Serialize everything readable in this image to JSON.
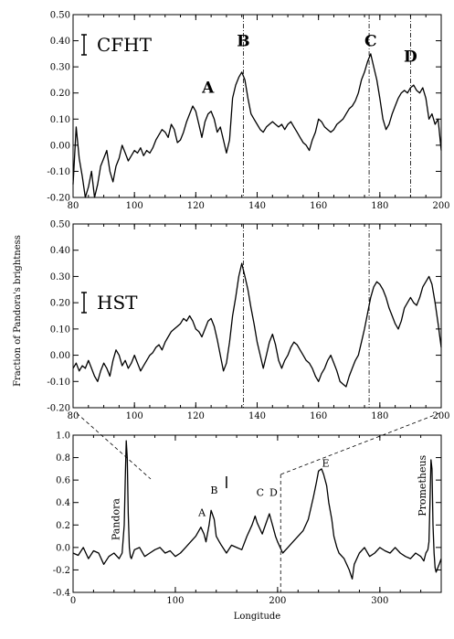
{
  "chart_data": [
    {
      "type": "line",
      "panel_label": "CFHT",
      "xlim": [
        80,
        200
      ],
      "ylim": [
        -0.2,
        0.5
      ],
      "xticks": [
        "80",
        "100",
        "120",
        "140",
        "160",
        "180",
        "200"
      ],
      "yticks": [
        "-0.20",
        "-0.10",
        "0.00",
        "0.10",
        "0.20",
        "0.30",
        "0.40",
        "0.50"
      ],
      "feature_labels": [
        {
          "text": "A",
          "x": 124,
          "y": 0.2
        },
        {
          "text": "B",
          "x": 135.5,
          "y": 0.38
        },
        {
          "text": "C",
          "x": 177,
          "y": 0.38
        },
        {
          "text": "D",
          "x": 190,
          "y": 0.32
        }
      ],
      "vlines": [
        135.5,
        176.5,
        190
      ],
      "series": [
        {
          "x": [
            80,
            81,
            82,
            83,
            84,
            85,
            86,
            87,
            88,
            89,
            90,
            91,
            92,
            93,
            94,
            95,
            96,
            97,
            98,
            99,
            100,
            101,
            102,
            103,
            104,
            105,
            106,
            107,
            108,
            109,
            110,
            111,
            112,
            113,
            114,
            115,
            116,
            117,
            118,
            119,
            120,
            121,
            122,
            123,
            124,
            125,
            126,
            127,
            128,
            129,
            130,
            131,
            132,
            133,
            134,
            135,
            136,
            137,
            138,
            139,
            140,
            141,
            142,
            143,
            144,
            145,
            146,
            147,
            148,
            149,
            150,
            151,
            152,
            153,
            154,
            155,
            156,
            157,
            158,
            159,
            160,
            161,
            162,
            163,
            164,
            165,
            166,
            167,
            168,
            169,
            170,
            171,
            172,
            173,
            174,
            175,
            176,
            177,
            178,
            179,
            180,
            181,
            182,
            183,
            184,
            185,
            186,
            187,
            188,
            189,
            190,
            191,
            192,
            193,
            194,
            195,
            196,
            197,
            198,
            199,
            200
          ],
          "y": [
            -0.15,
            0.07,
            -0.05,
            -0.12,
            -0.2,
            -0.16,
            -0.1,
            -0.2,
            -0.15,
            -0.08,
            -0.05,
            -0.02,
            -0.1,
            -0.14,
            -0.08,
            -0.05,
            0.0,
            -0.03,
            -0.06,
            -0.04,
            -0.02,
            -0.03,
            -0.01,
            -0.04,
            -0.02,
            -0.03,
            -0.01,
            0.02,
            0.04,
            0.06,
            0.05,
            0.03,
            0.08,
            0.06,
            0.01,
            0.02,
            0.05,
            0.09,
            0.12,
            0.15,
            0.13,
            0.08,
            0.03,
            0.09,
            0.12,
            0.13,
            0.1,
            0.05,
            0.07,
            0.02,
            -0.03,
            0.02,
            0.18,
            0.23,
            0.26,
            0.28,
            0.25,
            0.18,
            0.12,
            0.1,
            0.08,
            0.06,
            0.05,
            0.07,
            0.08,
            0.09,
            0.08,
            0.07,
            0.08,
            0.06,
            0.08,
            0.09,
            0.07,
            0.05,
            0.03,
            0.01,
            0.0,
            -0.02,
            0.02,
            0.05,
            0.1,
            0.09,
            0.07,
            0.06,
            0.05,
            0.06,
            0.08,
            0.09,
            0.1,
            0.12,
            0.14,
            0.15,
            0.17,
            0.2,
            0.25,
            0.28,
            0.32,
            0.35,
            0.3,
            0.25,
            0.18,
            0.1,
            0.06,
            0.08,
            0.12,
            0.15,
            0.18,
            0.2,
            0.21,
            0.2,
            0.22,
            0.23,
            0.21,
            0.2,
            0.22,
            0.18,
            0.1,
            0.12,
            0.08,
            0.1,
            -0.02
          ]
        }
      ]
    },
    {
      "type": "line",
      "panel_label": "HST",
      "xlim": [
        80,
        200
      ],
      "ylim": [
        -0.2,
        0.5
      ],
      "xticks": [
        "80",
        "100",
        "120",
        "140",
        "160",
        "180",
        "200"
      ],
      "yticks": [
        "-0.20",
        "-0.10",
        "0.00",
        "0.10",
        "0.20",
        "0.30",
        "0.40",
        "0.50"
      ],
      "vlines": [
        135.5,
        176.5
      ],
      "series": [
        {
          "x": [
            80,
            81,
            82,
            83,
            84,
            85,
            86,
            87,
            88,
            89,
            90,
            91,
            92,
            93,
            94,
            95,
            96,
            97,
            98,
            99,
            100,
            101,
            102,
            103,
            104,
            105,
            106,
            107,
            108,
            109,
            110,
            111,
            112,
            113,
            114,
            115,
            116,
            117,
            118,
            119,
            120,
            121,
            122,
            123,
            124,
            125,
            126,
            127,
            128,
            129,
            130,
            131,
            132,
            133,
            134,
            135,
            136,
            137,
            138,
            139,
            140,
            141,
            142,
            143,
            144,
            145,
            146,
            147,
            148,
            149,
            150,
            151,
            152,
            153,
            154,
            155,
            156,
            157,
            158,
            159,
            160,
            161,
            162,
            163,
            164,
            165,
            166,
            167,
            168,
            169,
            170,
            171,
            172,
            173,
            174,
            175,
            176,
            177,
            178,
            179,
            180,
            181,
            182,
            183,
            184,
            185,
            186,
            187,
            188,
            189,
            190,
            191,
            192,
            193,
            194,
            195,
            196,
            197,
            198,
            199,
            200
          ],
          "y": [
            -0.05,
            -0.03,
            -0.06,
            -0.04,
            -0.05,
            -0.02,
            -0.05,
            -0.08,
            -0.1,
            -0.06,
            -0.03,
            -0.05,
            -0.08,
            -0.02,
            0.02,
            0.0,
            -0.04,
            -0.02,
            -0.05,
            -0.03,
            0.0,
            -0.03,
            -0.06,
            -0.04,
            -0.02,
            0.0,
            0.01,
            0.03,
            0.04,
            0.02,
            0.05,
            0.07,
            0.09,
            0.1,
            0.11,
            0.12,
            0.14,
            0.13,
            0.15,
            0.13,
            0.1,
            0.09,
            0.07,
            0.1,
            0.13,
            0.14,
            0.11,
            0.06,
            0.0,
            -0.06,
            -0.03,
            0.05,
            0.15,
            0.22,
            0.3,
            0.35,
            0.3,
            0.25,
            0.18,
            0.12,
            0.05,
            0.0,
            -0.05,
            0.0,
            0.05,
            0.08,
            0.04,
            -0.02,
            -0.05,
            -0.02,
            0.0,
            0.03,
            0.05,
            0.04,
            0.02,
            0.0,
            -0.02,
            -0.03,
            -0.05,
            -0.08,
            -0.1,
            -0.07,
            -0.05,
            -0.02,
            0.0,
            -0.03,
            -0.06,
            -0.1,
            -0.11,
            -0.12,
            -0.08,
            -0.05,
            -0.02,
            0.0,
            0.05,
            0.1,
            0.16,
            0.22,
            0.26,
            0.28,
            0.27,
            0.25,
            0.22,
            0.18,
            0.15,
            0.12,
            0.1,
            0.13,
            0.18,
            0.2,
            0.22,
            0.2,
            0.19,
            0.22,
            0.26,
            0.28,
            0.3,
            0.27,
            0.2,
            0.12,
            0.03
          ]
        }
      ]
    },
    {
      "type": "line",
      "ylabel": "Fraction of Pandora's brightness",
      "xlabel": "Longitude",
      "xlim": [
        0,
        360
      ],
      "ylim": [
        -0.4,
        1.0
      ],
      "xticks": [
        "0",
        "100",
        "200",
        "300"
      ],
      "yticks": [
        "-0.4",
        "-0.2",
        "0.0",
        "0.2",
        "0.4",
        "0.6",
        "0.8",
        "1.0"
      ],
      "feature_labels": [
        {
          "text": "Pandora",
          "x": 45,
          "y": 0.25,
          "rotated": true
        },
        {
          "text": "A",
          "x": 126,
          "y": 0.28
        },
        {
          "text": "B",
          "x": 138,
          "y": 0.48
        },
        {
          "text": "C",
          "x": 183,
          "y": 0.46
        },
        {
          "text": "D",
          "x": 196,
          "y": 0.46
        },
        {
          "text": "E",
          "x": 247,
          "y": 0.72
        },
        {
          "text": "Prometheus",
          "x": 345,
          "y": 0.55,
          "rotated": true
        }
      ],
      "series": [
        {
          "x": [
            0,
            5,
            10,
            15,
            20,
            25,
            30,
            35,
            40,
            45,
            48,
            50,
            51,
            52,
            53,
            54,
            55,
            56,
            57,
            60,
            65,
            70,
            75,
            80,
            85,
            90,
            95,
            100,
            105,
            110,
            115,
            120,
            125,
            128,
            130,
            133,
            135,
            138,
            140,
            143,
            145,
            150,
            155,
            160,
            165,
            170,
            175,
            178,
            180,
            185,
            190,
            192,
            195,
            198,
            200,
            205,
            210,
            215,
            220,
            225,
            230,
            235,
            238,
            240,
            243,
            245,
            248,
            250,
            253,
            255,
            258,
            260,
            265,
            270,
            273,
            275,
            280,
            285,
            290,
            295,
            300,
            305,
            310,
            315,
            320,
            325,
            330,
            335,
            340,
            343,
            345,
            347,
            348,
            349,
            350,
            351,
            352,
            353,
            354,
            355,
            358,
            360
          ],
          "y": [
            -0.05,
            -0.07,
            0.0,
            -0.1,
            -0.03,
            -0.05,
            -0.15,
            -0.08,
            -0.05,
            -0.1,
            -0.05,
            0.2,
            0.6,
            0.95,
            0.8,
            0.3,
            0.0,
            -0.08,
            -0.1,
            -0.02,
            0.0,
            -0.08,
            -0.05,
            -0.02,
            0.0,
            -0.05,
            -0.03,
            -0.08,
            -0.05,
            0.0,
            0.05,
            0.1,
            0.18,
            0.12,
            0.05,
            0.2,
            0.33,
            0.25,
            0.1,
            0.05,
            0.02,
            -0.05,
            0.02,
            0.0,
            -0.02,
            0.1,
            0.2,
            0.28,
            0.22,
            0.12,
            0.25,
            0.3,
            0.2,
            0.1,
            0.05,
            -0.05,
            0.0,
            0.05,
            0.1,
            0.15,
            0.25,
            0.45,
            0.58,
            0.68,
            0.7,
            0.65,
            0.55,
            0.4,
            0.25,
            0.1,
            0.0,
            -0.05,
            -0.1,
            -0.2,
            -0.28,
            -0.15,
            -0.05,
            0.0,
            -0.08,
            -0.05,
            0.0,
            -0.03,
            -0.05,
            0.0,
            -0.05,
            -0.08,
            -0.1,
            -0.05,
            -0.08,
            -0.12,
            -0.05,
            -0.02,
            0.05,
            0.4,
            0.78,
            0.7,
            0.2,
            -0.05,
            -0.18,
            -0.22,
            -0.15,
            -0.1
          ]
        }
      ]
    }
  ]
}
